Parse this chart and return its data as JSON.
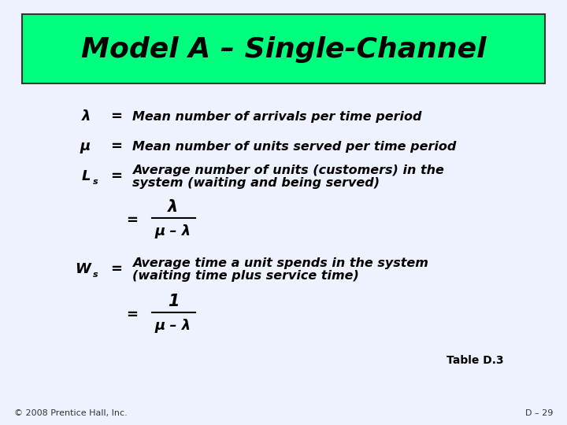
{
  "title": "Model A – Single-Channel",
  "title_bg": "#00FF7F",
  "title_border": "#333333",
  "slide_bg": "#EEF2FF",
  "col": "#000000",
  "table_ref": "Table D.3",
  "footer_left": "© 2008 Prentice Hall, Inc.",
  "footer_right": "D – 29",
  "lambda": "λ",
  "mu": "μ",
  "minus": "–",
  "formula_den": "μ – λ"
}
